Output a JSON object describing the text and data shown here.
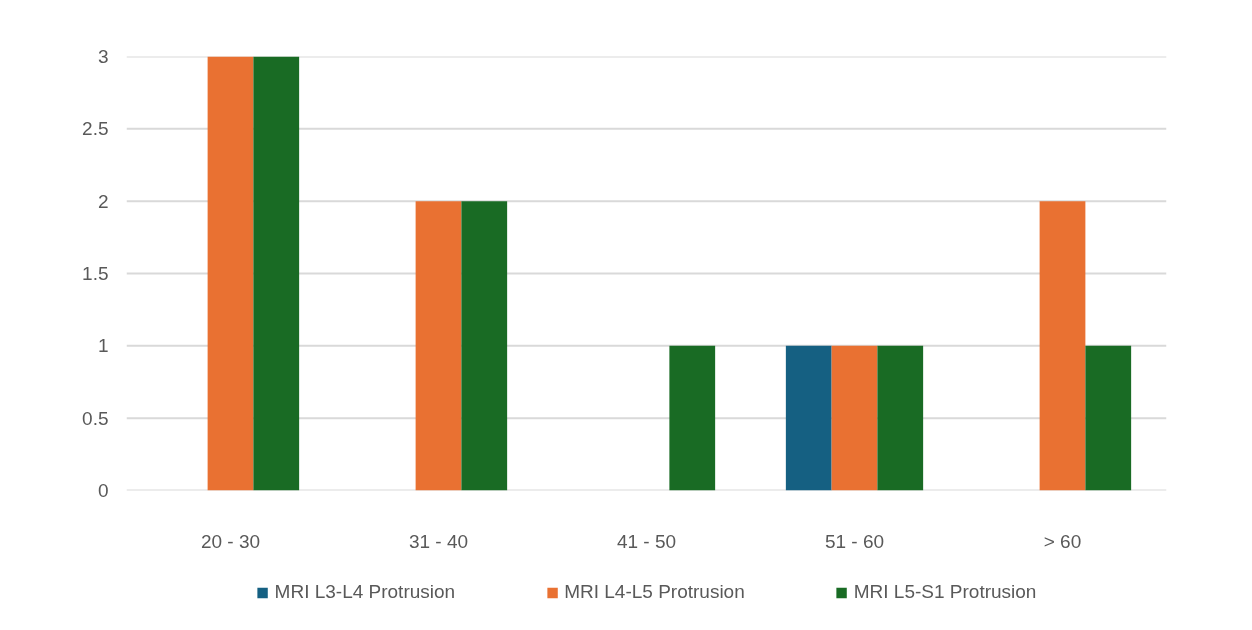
{
  "chart_data": {
    "type": "bar",
    "categories": [
      "20 - 30",
      "31 - 40",
      "41 - 50",
      "51 - 60",
      "> 60"
    ],
    "series": [
      {
        "name": "MRI L3-L4 Protrusion",
        "color": "#156082",
        "values": [
          0,
          0,
          0,
          1,
          0
        ]
      },
      {
        "name": "MRI L4-L5 Protrusion",
        "color": "#e97132",
        "values": [
          3,
          2,
          0,
          1,
          2
        ]
      },
      {
        "name": "MRI L5-S1 Protrusion",
        "color": "#196b24",
        "values": [
          3,
          2,
          1,
          1,
          1
        ]
      }
    ],
    "ylim": [
      0,
      3
    ],
    "yticks": [
      0,
      0.5,
      1,
      1.5,
      2,
      2.5,
      3
    ],
    "grid": "y",
    "legend": "bottom"
  }
}
